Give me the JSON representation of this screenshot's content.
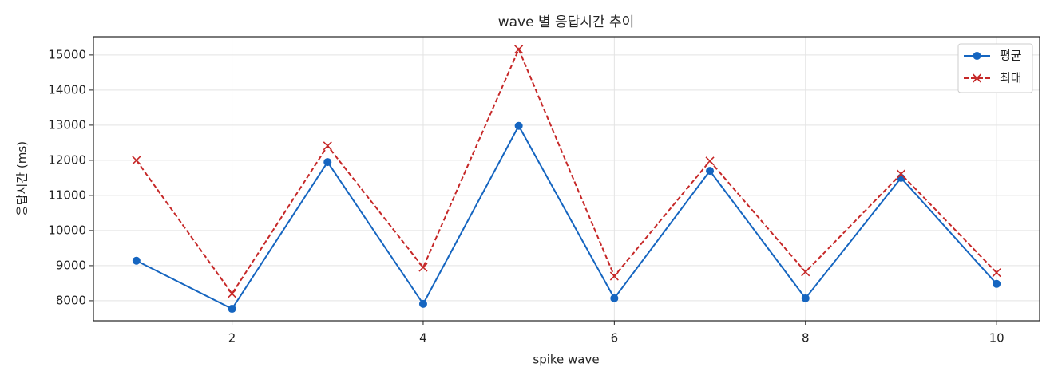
{
  "chart_data": {
    "type": "line",
    "title": "wave 별 응답시간 추이",
    "xlabel": "spike wave",
    "ylabel": "응답시간 (ms)",
    "x": [
      1,
      2,
      3,
      4,
      5,
      6,
      7,
      8,
      9,
      10
    ],
    "series": [
      {
        "name": "평균",
        "color": "#1565c0",
        "marker": "o",
        "linestyle": "solid",
        "values": [
          9140,
          7770,
          11950,
          7910,
          12980,
          8070,
          11700,
          8070,
          11500,
          8480
        ]
      },
      {
        "name": "최대",
        "color": "#c62828",
        "marker": "x",
        "linestyle": "dashed",
        "values": [
          12000,
          8200,
          12410,
          8950,
          15160,
          8700,
          11980,
          8820,
          11610,
          8800
        ]
      }
    ],
    "xlim": [
      0.55,
      10.45
    ],
    "xticks": [
      2,
      4,
      6,
      8,
      10
    ],
    "ylim": [
      7430,
      15520
    ],
    "yticks": [
      8000,
      9000,
      10000,
      11000,
      12000,
      13000,
      14000,
      15000
    ],
    "grid": true,
    "legend": "upper right"
  }
}
